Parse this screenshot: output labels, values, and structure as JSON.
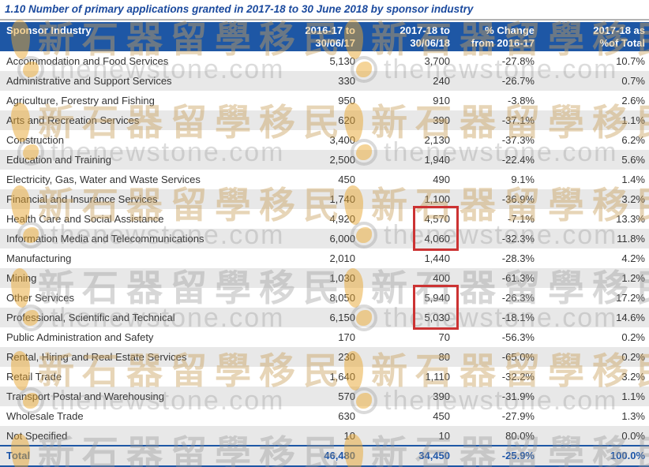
{
  "title": "1.10 Number of primary applications granted in 2017-18 to 30 June 2018 by sponsor industry",
  "watermark": {
    "brand_text": "thenewstone.com",
    "cjk_text": "新石器留學移民"
  },
  "colors": {
    "header_bg": "#1e57a5",
    "title_text": "#1b4a9e",
    "total_text": "#1d55a8",
    "row_stripe": "#e8e8e8",
    "highlight_border": "#cc3333"
  },
  "chart_data": {
    "type": "table",
    "columns": [
      {
        "line1": "Sponsor Industry",
        "line2": ""
      },
      {
        "line1": "2016-17 to",
        "line2": "30/06/17"
      },
      {
        "line1": "2017-18 to",
        "line2": "30/06/18"
      },
      {
        "line1": "% Change",
        "line2": "from 2016-17"
      },
      {
        "line1": "2017-18 as",
        "line2": "%of Total"
      }
    ],
    "rows": [
      {
        "industry": "Accommodation and Food Services",
        "granted_2016_17": "5,130",
        "granted_2017_18": "3,700",
        "pct_change": "-27.8%",
        "pct_of_total": "10.7%",
        "highlighted": false
      },
      {
        "industry": "Administrative and Support Services",
        "granted_2016_17": "330",
        "granted_2017_18": "240",
        "pct_change": "-26.7%",
        "pct_of_total": "0.7%",
        "highlighted": false
      },
      {
        "industry": "Agriculture, Forestry and Fishing",
        "granted_2016_17": "950",
        "granted_2017_18": "910",
        "pct_change": "-3.8%",
        "pct_of_total": "2.6%",
        "highlighted": false
      },
      {
        "industry": "Arts and Recreation Services",
        "granted_2016_17": "620",
        "granted_2017_18": "390",
        "pct_change": "-37.1%",
        "pct_of_total": "1.1%",
        "highlighted": false
      },
      {
        "industry": "Construction",
        "granted_2016_17": "3,400",
        "granted_2017_18": "2,130",
        "pct_change": "-37.3%",
        "pct_of_total": "6.2%",
        "highlighted": false
      },
      {
        "industry": "Education and Training",
        "granted_2016_17": "2,500",
        "granted_2017_18": "1,940",
        "pct_change": "-22.4%",
        "pct_of_total": "5.6%",
        "highlighted": false
      },
      {
        "industry": "Electricity, Gas, Water and Waste Services",
        "granted_2016_17": "450",
        "granted_2017_18": "490",
        "pct_change": "9.1%",
        "pct_of_total": "1.4%",
        "highlighted": false
      },
      {
        "industry": "Financial and Insurance Services",
        "granted_2016_17": "1,740",
        "granted_2017_18": "1,100",
        "pct_change": "-36.9%",
        "pct_of_total": "3.2%",
        "highlighted": false
      },
      {
        "industry": "Health Care and Social Assistance",
        "granted_2016_17": "4,920",
        "granted_2017_18": "4,570",
        "pct_change": "-7.1%",
        "pct_of_total": "13.3%",
        "highlighted": true
      },
      {
        "industry": "Information Media and Telecommunications",
        "granted_2016_17": "6,000",
        "granted_2017_18": "4,060",
        "pct_change": "-32.3%",
        "pct_of_total": "11.8%",
        "highlighted": true
      },
      {
        "industry": "Manufacturing",
        "granted_2016_17": "2,010",
        "granted_2017_18": "1,440",
        "pct_change": "-28.3%",
        "pct_of_total": "4.2%",
        "highlighted": false
      },
      {
        "industry": "Mining",
        "granted_2016_17": "1,030",
        "granted_2017_18": "400",
        "pct_change": "-61.3%",
        "pct_of_total": "1.2%",
        "highlighted": false
      },
      {
        "industry": "Other Services",
        "granted_2016_17": "8,050",
        "granted_2017_18": "5,940",
        "pct_change": "-26.3%",
        "pct_of_total": "17.2%",
        "highlighted": true
      },
      {
        "industry": "Professional, Scientific and Technical",
        "granted_2016_17": "6,150",
        "granted_2017_18": "5,030",
        "pct_change": "-18.1%",
        "pct_of_total": "14.6%",
        "highlighted": true
      },
      {
        "industry": "Public Administration and Safety",
        "granted_2016_17": "170",
        "granted_2017_18": "70",
        "pct_change": "-56.3%",
        "pct_of_total": "0.2%",
        "highlighted": false
      },
      {
        "industry": "Rental, Hiring and Real Estate Services",
        "granted_2016_17": "230",
        "granted_2017_18": "80",
        "pct_change": "-65.0%",
        "pct_of_total": "0.2%",
        "highlighted": false
      },
      {
        "industry": "Retail Trade",
        "granted_2016_17": "1,640",
        "granted_2017_18": "1,110",
        "pct_change": "-32.2%",
        "pct_of_total": "3.2%",
        "highlighted": false
      },
      {
        "industry": "Transport Postal and Warehousing",
        "granted_2016_17": "570",
        "granted_2017_18": "390",
        "pct_change": "-31.9%",
        "pct_of_total": "1.1%",
        "highlighted": false
      },
      {
        "industry": "Wholesale Trade",
        "granted_2016_17": "630",
        "granted_2017_18": "450",
        "pct_change": "-27.9%",
        "pct_of_total": "1.3%",
        "highlighted": false
      },
      {
        "industry": "Not Specified",
        "granted_2016_17": "10",
        "granted_2017_18": "10",
        "pct_change": "80.0%",
        "pct_of_total": "0.0%",
        "highlighted": false
      }
    ],
    "total": {
      "label": "Total",
      "granted_2016_17": "46,480",
      "granted_2017_18": "34,450",
      "pct_change": "-25.9%",
      "pct_of_total": "100.0%"
    }
  }
}
